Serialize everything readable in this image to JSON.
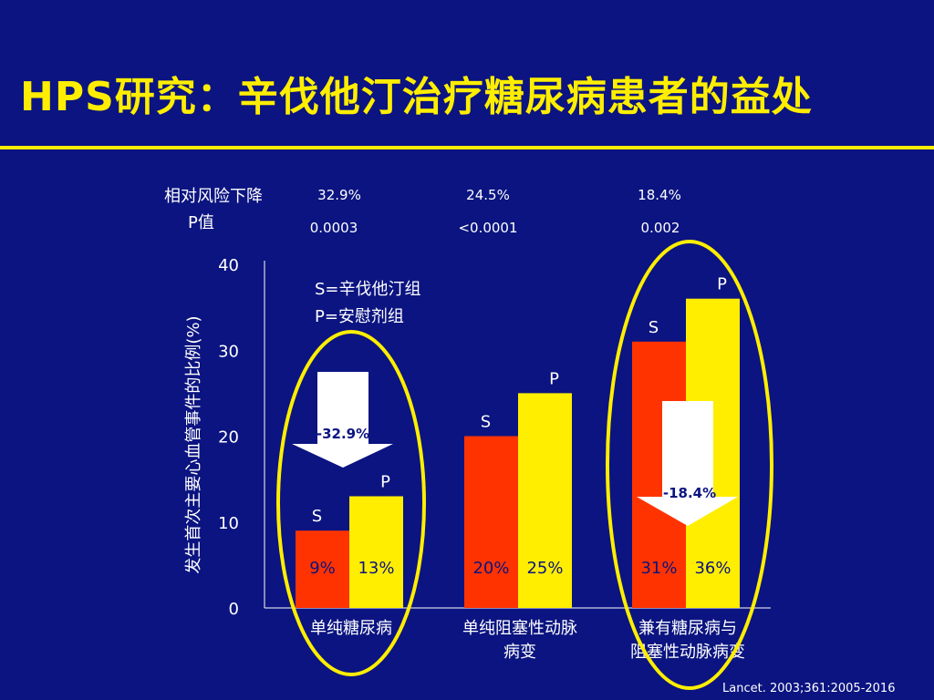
{
  "title": "HPS研究：辛伐他汀治疗糖尿病患者的益处",
  "citation": "Lancet. 2003;361:2005-2016",
  "header_rows": {
    "rrr_label": "相对风险下降",
    "p_label": "P值",
    "rrr_values": [
      "32.9%",
      "24.5%",
      "18.4%"
    ],
    "p_values": [
      "0.0003",
      "<0.0001",
      "0.002"
    ]
  },
  "legend": {
    "s": "S=辛伐他汀组",
    "p": "P=安慰剂组"
  },
  "arrows": [
    "-32.9%",
    "-18.4%"
  ],
  "colors": {
    "background": "#0b1480",
    "title": "#ffee00",
    "s_bar": "#ff3300",
    "p_bar": "#ffee00",
    "ellipse": "#ffee00",
    "text": "#ffffff",
    "bar_label": "#0b1480"
  },
  "chart_data": {
    "type": "bar",
    "ylabel": "发生首次主要心血管事件的比例(%)",
    "ylim": [
      0,
      40
    ],
    "yticks": [
      0,
      10,
      20,
      30,
      40
    ],
    "categories": [
      [
        "单纯糖尿病"
      ],
      [
        "单纯阻塞性动脉",
        "病变"
      ],
      [
        "兼有糖尿病与",
        "阻塞性动脉病变"
      ]
    ],
    "series": [
      {
        "name": "S",
        "values": [
          9,
          20,
          31
        ],
        "labels": [
          "9%",
          "20%",
          "31%"
        ]
      },
      {
        "name": "P",
        "values": [
          13,
          25,
          36
        ],
        "labels": [
          "13%",
          "25%",
          "36%"
        ]
      }
    ]
  }
}
